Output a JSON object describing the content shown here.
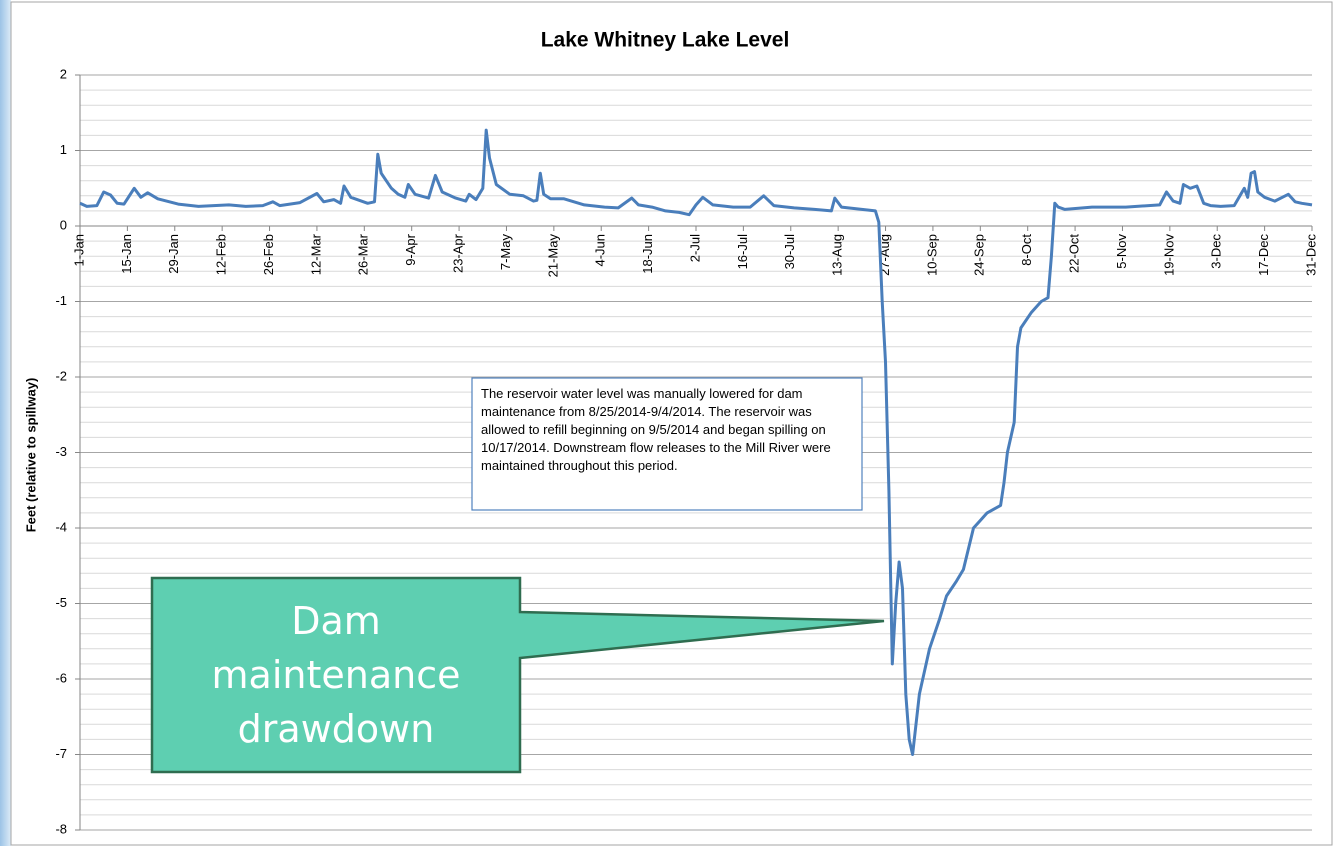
{
  "chart_data": {
    "type": "line",
    "title": "Lake Whitney Lake Level",
    "ylabel": "Feet (relative to spillway)",
    "annotation": "The reservoir water level was manually lowered for dam maintenance from 8/25/2014-9/4/2014. The reservoir was allowed to refill beginning on 9/5/2014 and began spilling on 10/17/2014. Downstream flow releases to the Mill River were maintained throughout this period.",
    "callout": "Dam maintenance drawdown",
    "xlim": [
      1,
      365
    ],
    "ylim": [
      -8,
      2
    ],
    "yticks": [
      -8,
      -7,
      -6,
      -5,
      -4,
      -3,
      -2,
      -1,
      0,
      1,
      2
    ],
    "minor_yticks": [
      -7.8,
      -7.6,
      -7.4,
      -7.2,
      -6.8,
      -6.6,
      -6.4,
      -6.2,
      -5.8,
      -5.6,
      -5.4,
      -5.2,
      -4.8,
      -4.6,
      -4.4,
      -4.2,
      -3.8,
      -3.6,
      -3.4,
      -3.2,
      -2.8,
      -2.6,
      -2.4,
      -2.2,
      -1.8,
      -1.6,
      -1.4,
      -1.2,
      -0.8,
      -0.6,
      -0.4,
      -0.2,
      0.2,
      0.4,
      0.6,
      0.8,
      1.2,
      1.4,
      1.6,
      1.8
    ],
    "grid": true,
    "xticks": [
      {
        "value": 1,
        "label": "1-Jan"
      },
      {
        "value": 15,
        "label": "15-Jan"
      },
      {
        "value": 29,
        "label": "29-Jan"
      },
      {
        "value": 43,
        "label": "12-Feb"
      },
      {
        "value": 57,
        "label": "26-Feb"
      },
      {
        "value": 71,
        "label": "12-Mar"
      },
      {
        "value": 85,
        "label": "26-Mar"
      },
      {
        "value": 99,
        "label": "9-Apr"
      },
      {
        "value": 113,
        "label": "23-Apr"
      },
      {
        "value": 127,
        "label": "7-May"
      },
      {
        "value": 141,
        "label": "21-May"
      },
      {
        "value": 155,
        "label": "4-Jun"
      },
      {
        "value": 169,
        "label": "18-Jun"
      },
      {
        "value": 183,
        "label": "2-Jul"
      },
      {
        "value": 197,
        "label": "16-Jul"
      },
      {
        "value": 211,
        "label": "30-Jul"
      },
      {
        "value": 225,
        "label": "13-Aug"
      },
      {
        "value": 239,
        "label": "27-Aug"
      },
      {
        "value": 253,
        "label": "10-Sep"
      },
      {
        "value": 267,
        "label": "24-Sep"
      },
      {
        "value": 281,
        "label": "8-Oct"
      },
      {
        "value": 295,
        "label": "22-Oct"
      },
      {
        "value": 309,
        "label": "5-Nov"
      },
      {
        "value": 323,
        "label": "19-Nov"
      },
      {
        "value": 337,
        "label": "3-Dec"
      },
      {
        "value": 351,
        "label": "17-Dec"
      },
      {
        "value": 365,
        "label": "31-Dec"
      }
    ],
    "x": [
      1,
      3,
      6,
      8,
      10,
      12,
      14,
      17,
      19,
      21,
      24,
      30,
      36,
      45,
      50,
      55,
      58,
      60,
      66,
      71,
      73,
      76,
      78,
      79,
      81,
      86,
      88,
      89,
      90,
      93,
      95,
      97,
      98,
      100,
      104,
      106,
      108,
      112,
      115,
      116,
      118,
      120,
      121,
      122,
      124,
      128,
      132,
      135,
      136,
      137,
      138,
      140,
      144,
      150,
      156,
      160,
      164,
      166,
      170,
      174,
      178,
      181,
      183,
      185,
      188,
      194,
      199,
      203,
      206,
      212,
      218,
      223,
      224,
      226,
      232,
      236,
      237,
      238,
      239,
      240,
      241,
      242,
      243,
      244,
      245,
      246,
      247,
      249,
      252,
      255,
      257,
      260,
      262,
      265,
      267,
      269,
      273,
      274,
      275,
      277,
      278,
      279,
      282,
      285,
      287,
      288,
      289,
      290,
      292,
      300,
      310,
      320,
      322,
      324,
      326,
      327,
      329,
      331,
      333,
      335,
      338,
      342,
      345,
      346,
      347,
      348,
      349,
      351,
      354,
      358,
      360,
      362,
      365
    ],
    "series": [
      {
        "name": "Lake Level",
        "color": "#4a7ebb",
        "values": [
          0.3,
          0.26,
          0.27,
          0.45,
          0.41,
          0.3,
          0.29,
          0.5,
          0.38,
          0.44,
          0.36,
          0.29,
          0.26,
          0.28,
          0.26,
          0.27,
          0.32,
          0.27,
          0.31,
          0.43,
          0.32,
          0.35,
          0.3,
          0.53,
          0.38,
          0.3,
          0.32,
          0.95,
          0.7,
          0.5,
          0.42,
          0.38,
          0.55,
          0.42,
          0.37,
          0.67,
          0.45,
          0.37,
          0.33,
          0.42,
          0.35,
          0.5,
          1.27,
          0.9,
          0.55,
          0.42,
          0.4,
          0.33,
          0.34,
          0.7,
          0.42,
          0.36,
          0.36,
          0.28,
          0.25,
          0.24,
          0.37,
          0.28,
          0.25,
          0.2,
          0.18,
          0.15,
          0.28,
          0.38,
          0.28,
          0.25,
          0.25,
          0.4,
          0.27,
          0.24,
          0.22,
          0.2,
          0.37,
          0.25,
          0.22,
          0.2,
          0.05,
          -1.0,
          -1.8,
          -3.5,
          -5.8,
          -5.0,
          -4.45,
          -4.8,
          -6.2,
          -6.8,
          -7.0,
          -6.2,
          -5.6,
          -5.2,
          -4.9,
          -4.7,
          -4.55,
          -4.0,
          -3.9,
          -3.8,
          -3.7,
          -3.4,
          -3.0,
          -2.6,
          -1.6,
          -1.35,
          -1.15,
          -1.0,
          -0.95,
          -0.4,
          0.3,
          0.25,
          0.22,
          0.25,
          0.25,
          0.28,
          0.45,
          0.33,
          0.3,
          0.55,
          0.5,
          0.53,
          0.3,
          0.27,
          0.26,
          0.27,
          0.5,
          0.38,
          0.7,
          0.72,
          0.45,
          0.38,
          0.33,
          0.42,
          0.32,
          0.3,
          0.28
        ]
      }
    ]
  }
}
